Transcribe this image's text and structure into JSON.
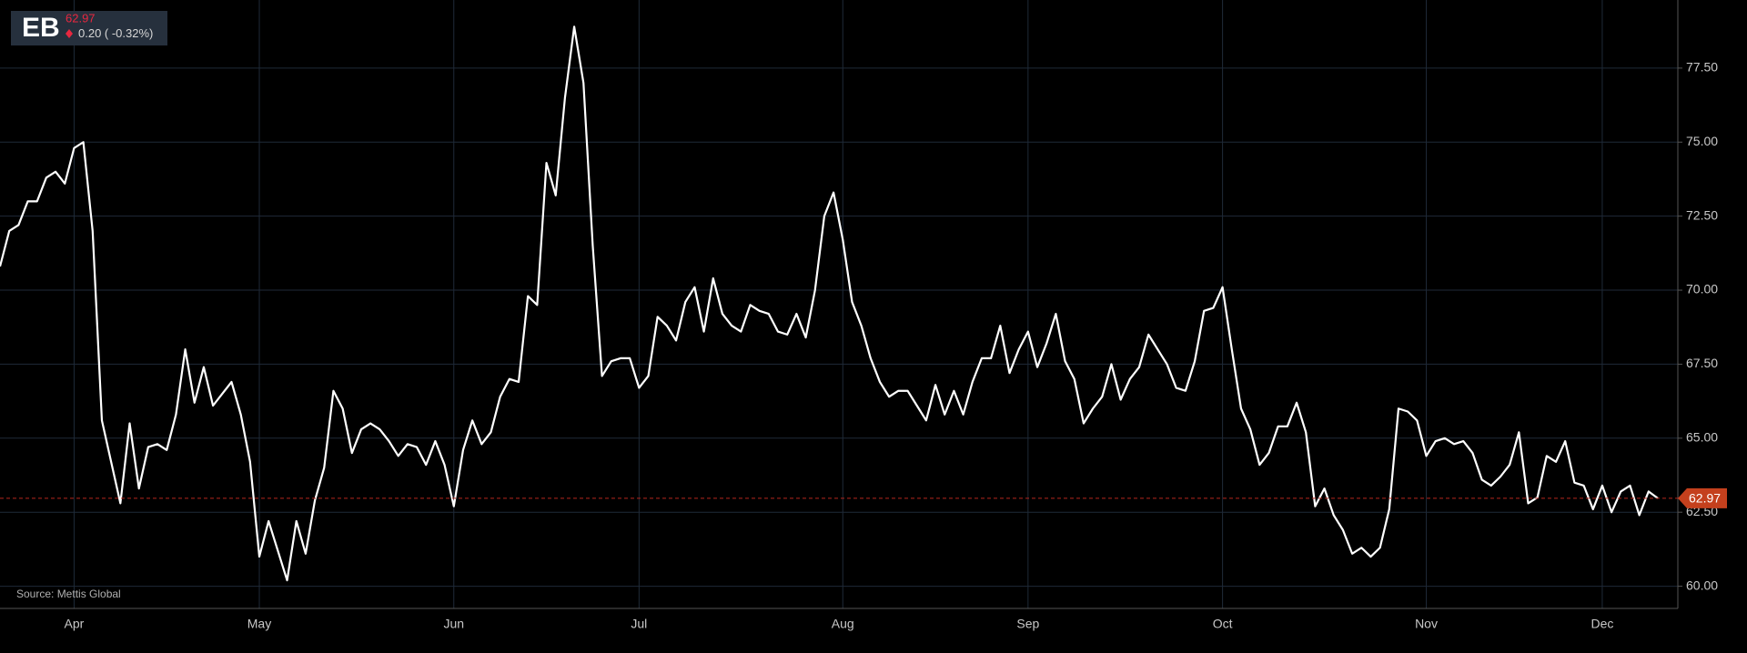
{
  "header": {
    "ticker": "EB",
    "price": "62.97",
    "change": "0.20 ( -0.32%)"
  },
  "chart_data": {
    "type": "line",
    "source": "Source: Mettis Global",
    "color": "#ffffff",
    "grid": true,
    "last_value": 62.97,
    "last_label": "62.97",
    "categories": [
      null,
      null,
      null,
      null,
      null,
      null,
      null,
      null,
      "Apr",
      null,
      null,
      null,
      null,
      null,
      null,
      null,
      null,
      null,
      null,
      null,
      null,
      null,
      null,
      null,
      null,
      null,
      null,
      null,
      "May",
      null,
      null,
      null,
      null,
      null,
      null,
      null,
      null,
      null,
      null,
      null,
      null,
      null,
      null,
      null,
      null,
      null,
      null,
      null,
      null,
      "Jun",
      null,
      null,
      null,
      null,
      null,
      null,
      null,
      null,
      null,
      null,
      null,
      null,
      null,
      null,
      null,
      null,
      null,
      null,
      null,
      "Jul",
      null,
      null,
      null,
      null,
      null,
      null,
      null,
      null,
      null,
      null,
      null,
      null,
      null,
      null,
      null,
      null,
      null,
      null,
      null,
      null,
      null,
      "Aug",
      null,
      null,
      null,
      null,
      null,
      null,
      null,
      null,
      null,
      null,
      null,
      null,
      null,
      null,
      null,
      null,
      null,
      null,
      null,
      "Sep",
      null,
      null,
      null,
      null,
      null,
      null,
      null,
      null,
      null,
      null,
      null,
      null,
      null,
      null,
      null,
      null,
      null,
      null,
      null,
      null,
      "Oct",
      null,
      null,
      null,
      null,
      null,
      null,
      null,
      null,
      null,
      null,
      null,
      null,
      null,
      null,
      null,
      null,
      null,
      null,
      null,
      null,
      null,
      "Nov",
      null,
      null,
      null,
      null,
      null,
      null,
      null,
      null,
      null,
      null,
      null,
      null,
      null,
      null,
      null,
      null,
      null,
      null,
      "Dec",
      null,
      null,
      null,
      null,
      null,
      null
    ],
    "values": [
      70.8,
      72.0,
      72.2,
      73.0,
      73.0,
      73.8,
      74.0,
      73.6,
      74.8,
      75.0,
      72.0,
      65.6,
      64.2,
      62.8,
      65.5,
      63.3,
      64.7,
      64.8,
      64.6,
      65.8,
      68.0,
      66.2,
      67.4,
      66.1,
      66.5,
      66.9,
      65.8,
      64.2,
      61.0,
      62.2,
      61.2,
      60.2,
      62.2,
      61.1,
      62.9,
      64.0,
      66.6,
      66.0,
      64.5,
      65.3,
      65.5,
      65.3,
      64.9,
      64.4,
      64.8,
      64.7,
      64.1,
      64.9,
      64.1,
      62.7,
      64.6,
      65.6,
      64.8,
      65.2,
      66.4,
      67.0,
      66.9,
      69.8,
      69.5,
      74.3,
      73.2,
      76.5,
      78.9,
      77.0,
      71.5,
      67.1,
      67.6,
      67.7,
      67.7,
      66.7,
      67.1,
      69.1,
      68.8,
      68.3,
      69.6,
      70.1,
      68.6,
      70.4,
      69.2,
      68.8,
      68.6,
      69.5,
      69.3,
      69.2,
      68.6,
      68.5,
      69.2,
      68.4,
      70.0,
      72.5,
      73.3,
      71.7,
      69.6,
      68.8,
      67.7,
      66.9,
      66.4,
      66.6,
      66.6,
      66.1,
      65.6,
      66.8,
      65.8,
      66.6,
      65.8,
      66.9,
      67.7,
      67.7,
      68.8,
      67.2,
      68.0,
      68.6,
      67.4,
      68.2,
      69.2,
      67.6,
      67.0,
      65.5,
      66.0,
      66.4,
      67.5,
      66.3,
      67.0,
      67.4,
      68.5,
      68.0,
      67.5,
      66.7,
      66.6,
      67.6,
      69.3,
      69.4,
      70.1,
      68.0,
      66.0,
      65.3,
      64.1,
      64.5,
      65.4,
      65.4,
      66.2,
      65.2,
      62.7,
      63.3,
      62.4,
      61.9,
      61.1,
      61.3,
      61.0,
      61.3,
      62.6,
      66.0,
      65.9,
      65.6,
      64.4,
      64.9,
      65.0,
      64.8,
      64.9,
      64.5,
      63.6,
      63.4,
      63.7,
      64.1,
      65.2,
      62.8,
      63.0,
      64.4,
      64.2,
      64.9,
      63.5,
      63.4,
      62.6,
      63.4,
      62.5,
      63.2,
      63.4,
      62.4,
      63.2,
      62.97
    ],
    "ylim": [
      59.25,
      79.8
    ],
    "yticks": [
      {
        "value": 60,
        "label": "60.00"
      },
      {
        "value": 62.5,
        "label": "62.50"
      },
      {
        "value": 65,
        "label": "65.00"
      },
      {
        "value": 67.5,
        "label": "67.50"
      },
      {
        "value": 70,
        "label": "70.00"
      },
      {
        "value": 72.5,
        "label": "72.50"
      },
      {
        "value": 75,
        "label": "75.00"
      },
      {
        "value": 77.5,
        "label": "77.50"
      }
    ]
  }
}
